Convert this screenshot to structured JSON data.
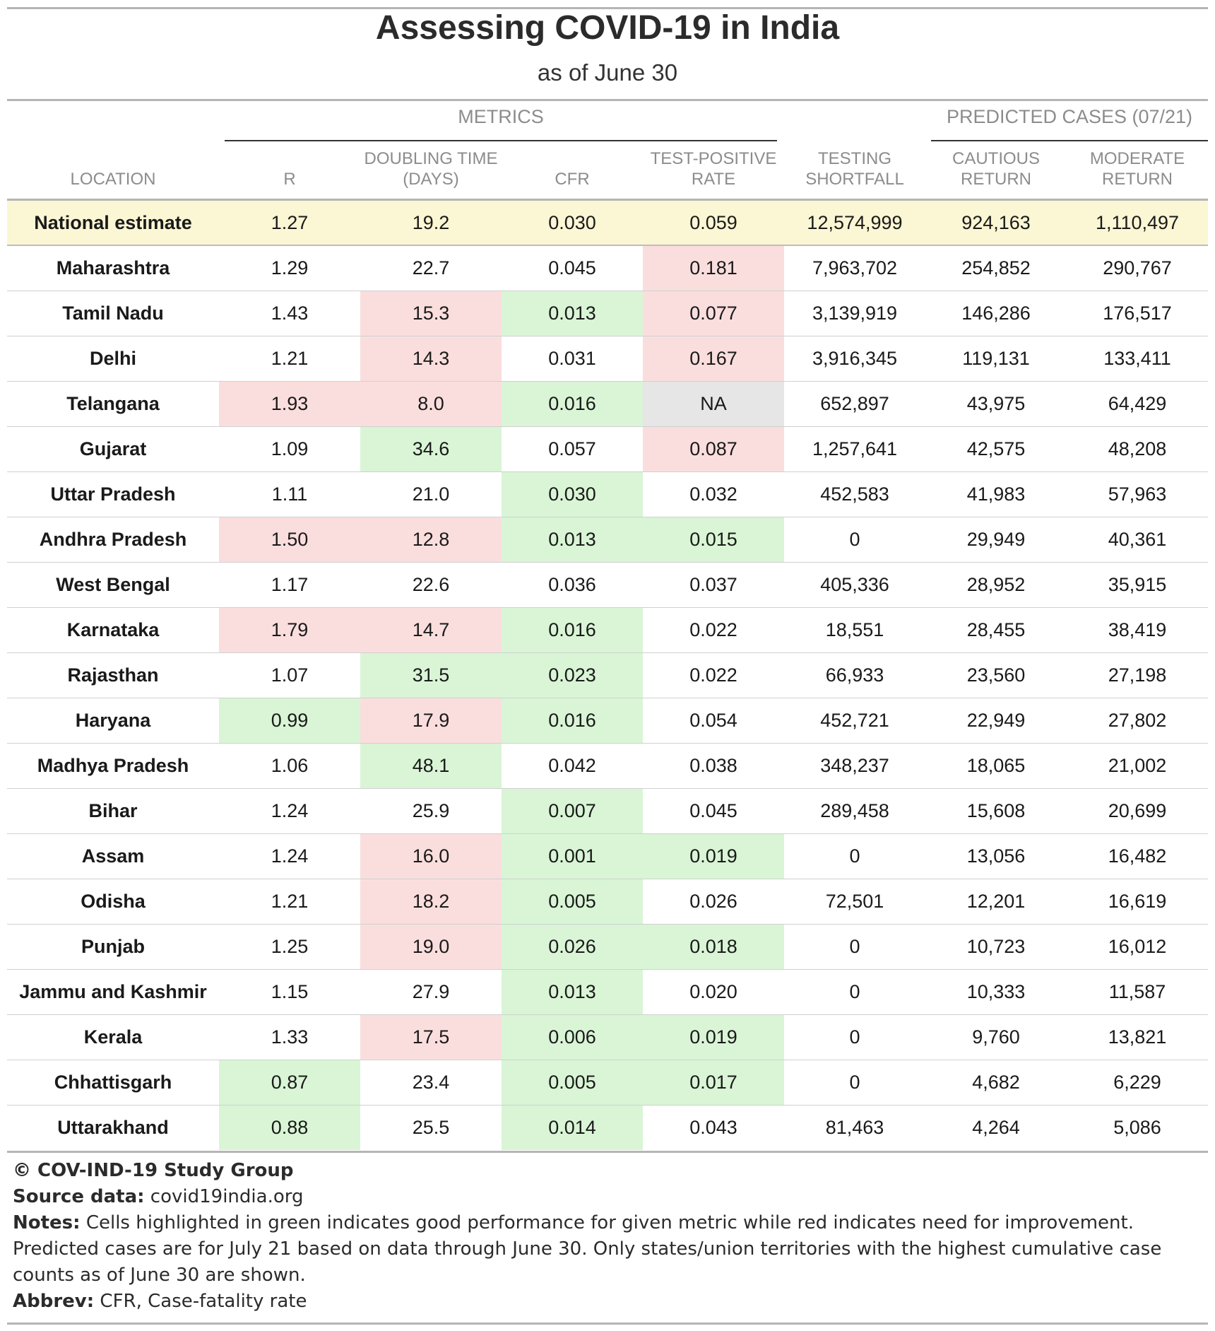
{
  "title": "Assessing COVID-19 in India",
  "subtitle": "as of June 30",
  "spanners": {
    "metrics": "METRICS",
    "predicted": "PREDICTED CASES (07/21)"
  },
  "columns": {
    "location": "LOCATION",
    "r": "R",
    "doubling": "DOUBLING TIME (DAYS)",
    "cfr": "CFR",
    "tpr": "TEST-POSITIVE RATE",
    "shortfall": "TESTING SHORTFALL",
    "cautious": "CAUTIOUS RETURN",
    "moderate": "MODERATE RETURN"
  },
  "colors": {
    "good": "#d9f5d6",
    "bad": "#fadedd",
    "na": "#e6e6e6",
    "national": "#fbf6d3"
  },
  "rows": [
    {
      "location": "National estimate",
      "r": "1.27",
      "doubling": "19.2",
      "cfr": "0.030",
      "tpr": "0.059",
      "shortfall": "12,574,999",
      "cautious": "924,163",
      "moderate": "1,110,497",
      "hl": {
        "r": "",
        "doubling": "",
        "cfr": "",
        "tpr": ""
      }
    },
    {
      "location": "Maharashtra",
      "r": "1.29",
      "doubling": "22.7",
      "cfr": "0.045",
      "tpr": "0.181",
      "shortfall": "7,963,702",
      "cautious": "254,852",
      "moderate": "290,767",
      "hl": {
        "r": "",
        "doubling": "",
        "cfr": "",
        "tpr": "red"
      }
    },
    {
      "location": "Tamil Nadu",
      "r": "1.43",
      "doubling": "15.3",
      "cfr": "0.013",
      "tpr": "0.077",
      "shortfall": "3,139,919",
      "cautious": "146,286",
      "moderate": "176,517",
      "hl": {
        "r": "",
        "doubling": "red",
        "cfr": "green",
        "tpr": "red"
      }
    },
    {
      "location": "Delhi",
      "r": "1.21",
      "doubling": "14.3",
      "cfr": "0.031",
      "tpr": "0.167",
      "shortfall": "3,916,345",
      "cautious": "119,131",
      "moderate": "133,411",
      "hl": {
        "r": "",
        "doubling": "red",
        "cfr": "",
        "tpr": "red"
      }
    },
    {
      "location": "Telangana",
      "r": "1.93",
      "doubling": "8.0",
      "cfr": "0.016",
      "tpr": "NA",
      "shortfall": "652,897",
      "cautious": "43,975",
      "moderate": "64,429",
      "hl": {
        "r": "red",
        "doubling": "red",
        "cfr": "green",
        "tpr": "grey"
      }
    },
    {
      "location": "Gujarat",
      "r": "1.09",
      "doubling": "34.6",
      "cfr": "0.057",
      "tpr": "0.087",
      "shortfall": "1,257,641",
      "cautious": "42,575",
      "moderate": "48,208",
      "hl": {
        "r": "",
        "doubling": "green",
        "cfr": "",
        "tpr": "red"
      }
    },
    {
      "location": "Uttar Pradesh",
      "r": "1.11",
      "doubling": "21.0",
      "cfr": "0.030",
      "tpr": "0.032",
      "shortfall": "452,583",
      "cautious": "41,983",
      "moderate": "57,963",
      "hl": {
        "r": "",
        "doubling": "",
        "cfr": "green",
        "tpr": ""
      }
    },
    {
      "location": "Andhra Pradesh",
      "r": "1.50",
      "doubling": "12.8",
      "cfr": "0.013",
      "tpr": "0.015",
      "shortfall": "0",
      "cautious": "29,949",
      "moderate": "40,361",
      "hl": {
        "r": "red",
        "doubling": "red",
        "cfr": "green",
        "tpr": "green"
      }
    },
    {
      "location": "West Bengal",
      "r": "1.17",
      "doubling": "22.6",
      "cfr": "0.036",
      "tpr": "0.037",
      "shortfall": "405,336",
      "cautious": "28,952",
      "moderate": "35,915",
      "hl": {
        "r": "",
        "doubling": "",
        "cfr": "",
        "tpr": ""
      }
    },
    {
      "location": "Karnataka",
      "r": "1.79",
      "doubling": "14.7",
      "cfr": "0.016",
      "tpr": "0.022",
      "shortfall": "18,551",
      "cautious": "28,455",
      "moderate": "38,419",
      "hl": {
        "r": "red",
        "doubling": "red",
        "cfr": "green",
        "tpr": ""
      }
    },
    {
      "location": "Rajasthan",
      "r": "1.07",
      "doubling": "31.5",
      "cfr": "0.023",
      "tpr": "0.022",
      "shortfall": "66,933",
      "cautious": "23,560",
      "moderate": "27,198",
      "hl": {
        "r": "",
        "doubling": "green",
        "cfr": "green",
        "tpr": ""
      }
    },
    {
      "location": "Haryana",
      "r": "0.99",
      "doubling": "17.9",
      "cfr": "0.016",
      "tpr": "0.054",
      "shortfall": "452,721",
      "cautious": "22,949",
      "moderate": "27,802",
      "hl": {
        "r": "green",
        "doubling": "red",
        "cfr": "green",
        "tpr": ""
      }
    },
    {
      "location": "Madhya Pradesh",
      "r": "1.06",
      "doubling": "48.1",
      "cfr": "0.042",
      "tpr": "0.038",
      "shortfall": "348,237",
      "cautious": "18,065",
      "moderate": "21,002",
      "hl": {
        "r": "",
        "doubling": "green",
        "cfr": "",
        "tpr": ""
      }
    },
    {
      "location": "Bihar",
      "r": "1.24",
      "doubling": "25.9",
      "cfr": "0.007",
      "tpr": "0.045",
      "shortfall": "289,458",
      "cautious": "15,608",
      "moderate": "20,699",
      "hl": {
        "r": "",
        "doubling": "",
        "cfr": "green",
        "tpr": ""
      }
    },
    {
      "location": "Assam",
      "r": "1.24",
      "doubling": "16.0",
      "cfr": "0.001",
      "tpr": "0.019",
      "shortfall": "0",
      "cautious": "13,056",
      "moderate": "16,482",
      "hl": {
        "r": "",
        "doubling": "red",
        "cfr": "green",
        "tpr": "green"
      }
    },
    {
      "location": "Odisha",
      "r": "1.21",
      "doubling": "18.2",
      "cfr": "0.005",
      "tpr": "0.026",
      "shortfall": "72,501",
      "cautious": "12,201",
      "moderate": "16,619",
      "hl": {
        "r": "",
        "doubling": "red",
        "cfr": "green",
        "tpr": ""
      }
    },
    {
      "location": "Punjab",
      "r": "1.25",
      "doubling": "19.0",
      "cfr": "0.026",
      "tpr": "0.018",
      "shortfall": "0",
      "cautious": "10,723",
      "moderate": "16,012",
      "hl": {
        "r": "",
        "doubling": "red",
        "cfr": "green",
        "tpr": "green"
      }
    },
    {
      "location": "Jammu and Kashmir",
      "r": "1.15",
      "doubling": "27.9",
      "cfr": "0.013",
      "tpr": "0.020",
      "shortfall": "0",
      "cautious": "10,333",
      "moderate": "11,587",
      "hl": {
        "r": "",
        "doubling": "",
        "cfr": "green",
        "tpr": ""
      }
    },
    {
      "location": "Kerala",
      "r": "1.33",
      "doubling": "17.5",
      "cfr": "0.006",
      "tpr": "0.019",
      "shortfall": "0",
      "cautious": "9,760",
      "moderate": "13,821",
      "hl": {
        "r": "",
        "doubling": "red",
        "cfr": "green",
        "tpr": "green"
      }
    },
    {
      "location": "Chhattisgarh",
      "r": "0.87",
      "doubling": "23.4",
      "cfr": "0.005",
      "tpr": "0.017",
      "shortfall": "0",
      "cautious": "4,682",
      "moderate": "6,229",
      "hl": {
        "r": "green",
        "doubling": "",
        "cfr": "green",
        "tpr": "green"
      }
    },
    {
      "location": "Uttarakhand",
      "r": "0.88",
      "doubling": "25.5",
      "cfr": "0.014",
      "tpr": "0.043",
      "shortfall": "81,463",
      "cautious": "4,264",
      "moderate": "5,086",
      "hl": {
        "r": "green",
        "doubling": "",
        "cfr": "green",
        "tpr": ""
      }
    }
  ],
  "footer": {
    "credit": "© COV-IND-19 Study Group",
    "source_label": "Source data:",
    "source_value": " covid19india.org",
    "notes_label": "Notes:",
    "notes_value": " Cells highlighted in green indicates good performance for given metric while red indicates need for improvement. Predicted cases are for July 21 based on data through June 30. Only states/union territories with the highest cumulative case counts as of June 30 are shown.",
    "abbrev_label": "Abbrev:",
    "abbrev_value": " CFR, Case-fatality rate"
  }
}
